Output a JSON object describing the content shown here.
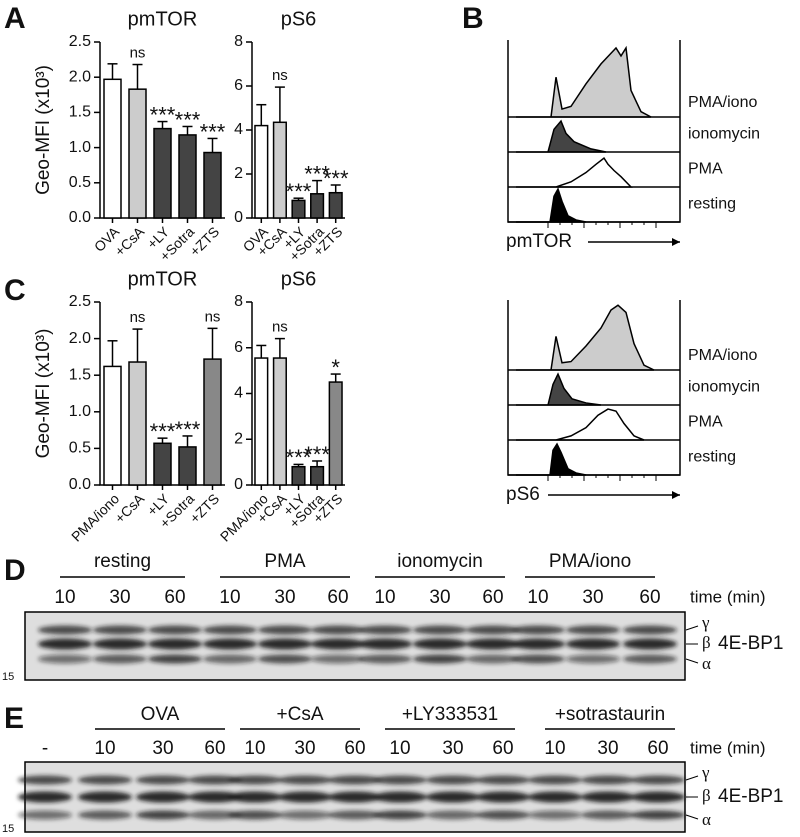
{
  "chart_data": [
    {
      "type": "bar",
      "title": "pmTOR",
      "ylabel": "Geo-MFI (x10³)",
      "categories": [
        "OVA",
        "+CsA",
        "+LY",
        "+Sotra",
        "+ZTS"
      ],
      "values": [
        1.97,
        1.83,
        1.27,
        1.18,
        0.93
      ],
      "errors": [
        0.22,
        0.35,
        0.1,
        0.12,
        0.2
      ],
      "colors": [
        "#ffffff",
        "#cccccc",
        "#444444",
        "#444444",
        "#444444"
      ],
      "annotations": [
        null,
        "ns",
        "***",
        "***",
        "***"
      ],
      "ylim": [
        0,
        2.5
      ],
      "yticks": [
        {
          "value": 0,
          "label": "0.0"
        },
        0.5,
        {
          "value": 1,
          "label": "1.0"
        },
        1.5,
        {
          "value": 2,
          "label": "2.0"
        },
        2.5
      ]
    },
    {
      "type": "bar",
      "title": "pS6",
      "categories": [
        "OVA",
        "+CsA",
        "+LY",
        "+Sotra",
        "+ZTS"
      ],
      "values": [
        4.2,
        4.35,
        0.8,
        1.1,
        1.15
      ],
      "errors": [
        0.95,
        1.6,
        0.1,
        0.6,
        0.35
      ],
      "colors": [
        "#ffffff",
        "#cccccc",
        "#444444",
        "#444444",
        "#444444"
      ],
      "annotations": [
        null,
        "ns",
        "***",
        "***",
        "***"
      ],
      "ylim": [
        0,
        8
      ],
      "yticks": [
        0,
        2,
        4,
        6,
        8
      ]
    },
    {
      "type": "bar",
      "title": "pmTOR",
      "ylabel": "Geo-MFI (x10³)",
      "categories": [
        "PMA/iono",
        "+CsA",
        "+LY",
        "+Sotra",
        "+ZTS"
      ],
      "values": [
        1.62,
        1.68,
        0.57,
        0.52,
        1.72
      ],
      "errors": [
        0.35,
        0.45,
        0.07,
        0.15,
        0.42
      ],
      "colors": [
        "#ffffff",
        "#cccccc",
        "#444444",
        "#444444",
        "#888888"
      ],
      "annotations": [
        null,
        "ns",
        "***",
        "***",
        "ns"
      ],
      "ylim": [
        0,
        2.5
      ],
      "yticks": [
        {
          "value": 0,
          "label": "0.0"
        },
        0.5,
        {
          "value": 1,
          "label": "1.0"
        },
        1.5,
        {
          "value": 2,
          "label": "2.0"
        },
        2.5
      ]
    },
    {
      "type": "bar",
      "title": "pS6",
      "categories": [
        "PMA/iono",
        "+CsA",
        "+LY",
        "+Sotra",
        "+ZTS"
      ],
      "values": [
        5.55,
        5.55,
        0.8,
        0.8,
        4.5
      ],
      "errors": [
        0.55,
        0.85,
        0.1,
        0.25,
        0.35
      ],
      "colors": [
        "#ffffff",
        "#cccccc",
        "#444444",
        "#444444",
        "#888888"
      ],
      "annotations": [
        null,
        "ns",
        "***",
        "***",
        "*"
      ],
      "ylim": [
        0,
        8
      ],
      "yticks": [
        0,
        2,
        4,
        6,
        8
      ]
    }
  ],
  "panel_labels": [
    "A",
    "B",
    "C",
    "D",
    "E"
  ],
  "panel_b": {
    "rows": [
      "PMA/iono",
      "ionomycin",
      "PMA",
      "resting"
    ],
    "x_labels": [
      "pmTOR",
      "pS6"
    ]
  },
  "panel_d": {
    "groups": [
      "resting",
      "PMA",
      "ionomycin",
      "PMA/iono"
    ],
    "times": [
      "10",
      "30",
      "60"
    ],
    "time_label": "time (min)",
    "bands": [
      "γ",
      "β",
      "α"
    ],
    "protein": "4E-BP1",
    "marker": "15"
  },
  "panel_e": {
    "control": "-",
    "groups": [
      "OVA",
      "+CsA",
      "+LY333531",
      "+sotrastaurin"
    ],
    "times": [
      "10",
      "30",
      "60"
    ],
    "time_label": "time (min)",
    "bands": [
      "γ",
      "β",
      "α"
    ],
    "protein": "4E-BP1",
    "marker": "15"
  }
}
